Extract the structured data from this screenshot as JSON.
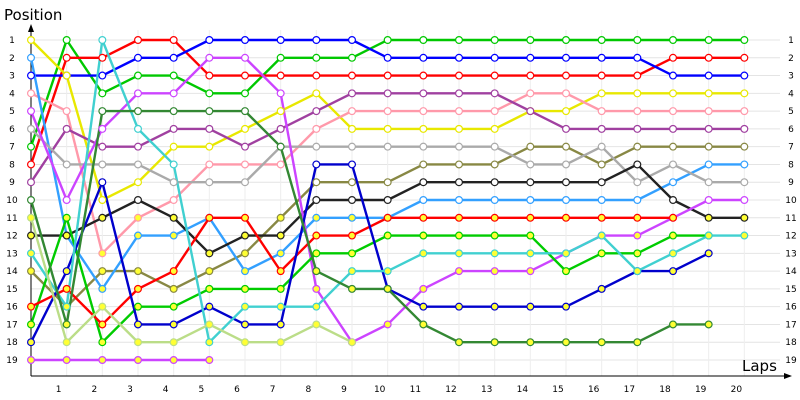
{
  "chart_data": {
    "type": "line",
    "ylabel": "Position",
    "xlabel": "Laps",
    "x_ticks": [
      "1",
      "2",
      "3",
      "4",
      "5",
      "6",
      "7",
      "8",
      "9",
      "10",
      "11",
      "12",
      "13",
      "14",
      "15",
      "16",
      "17",
      "18",
      "19",
      "20"
    ],
    "y_ticks": [
      "1",
      "2",
      "3",
      "4",
      "5",
      "6",
      "7",
      "8",
      "9",
      "10",
      "11",
      "12",
      "13",
      "14",
      "15",
      "16",
      "17",
      "18",
      "19"
    ],
    "xlim": [
      0,
      21
    ],
    "ylim": [
      1,
      19
    ],
    "y_inverted": true,
    "grid": true,
    "series": [
      {
        "color": "#00c800",
        "x": [
          0,
          1,
          2,
          3,
          4,
          5,
          6,
          7,
          8,
          9,
          10,
          11,
          12,
          13,
          14,
          15,
          16,
          17,
          18,
          19,
          20
        ],
        "y": [
          7,
          1,
          4,
          3,
          3,
          4,
          4,
          2,
          2,
          2,
          1,
          1,
          1,
          1,
          1,
          1,
          1,
          1,
          1,
          1,
          1
        ]
      },
      {
        "color": "#ff0000",
        "x": [
          0,
          1,
          2,
          3,
          4,
          5,
          6,
          7,
          8,
          9,
          10,
          11,
          12,
          13,
          14,
          15,
          16,
          17,
          18,
          19,
          20
        ],
        "y": [
          8,
          2,
          2,
          1,
          1,
          3,
          3,
          3,
          3,
          3,
          3,
          3,
          3,
          3,
          3,
          3,
          3,
          3,
          2,
          2,
          2
        ]
      },
      {
        "color": "#0000ff",
        "x": [
          0,
          1,
          2,
          3,
          4,
          5,
          6,
          7,
          8,
          9,
          10,
          11,
          12,
          13,
          14,
          15,
          16,
          17,
          18,
          19,
          20
        ],
        "y": [
          3,
          3,
          3,
          2,
          2,
          1,
          1,
          1,
          1,
          1,
          2,
          2,
          2,
          2,
          2,
          2,
          2,
          2,
          3,
          3,
          3
        ]
      },
      {
        "color": "#e8e800",
        "x": [
          0,
          1,
          2,
          3,
          4,
          5,
          6,
          7,
          8,
          9,
          10,
          11,
          12,
          13,
          14,
          15,
          16,
          17,
          18,
          19,
          20
        ],
        "y": [
          1,
          3,
          10,
          9,
          7,
          7,
          6,
          5,
          4,
          6,
          6,
          6,
          6,
          6,
          5,
          5,
          4,
          4,
          4,
          4,
          4
        ]
      },
      {
        "color": "#ff99aa",
        "x": [
          0,
          1,
          2,
          3,
          4,
          5,
          6,
          7,
          8,
          9,
          10,
          11,
          12,
          13,
          14,
          15,
          16,
          17,
          18,
          19,
          20
        ],
        "y": [
          4,
          5,
          13,
          11,
          10,
          8,
          8,
          8,
          6,
          5,
          5,
          5,
          5,
          5,
          4,
          4,
          5,
          5,
          5,
          5,
          5
        ]
      },
      {
        "color": "#a040a0",
        "x": [
          0,
          1,
          2,
          3,
          4,
          5,
          6,
          7,
          8,
          9,
          10,
          11,
          12,
          13,
          14,
          15,
          16,
          17,
          18,
          19,
          20
        ],
        "y": [
          9,
          6,
          7,
          7,
          6,
          6,
          7,
          6,
          5,
          4,
          4,
          4,
          4,
          4,
          5,
          6,
          6,
          6,
          6,
          6,
          6
        ]
      },
      {
        "color": "#888844",
        "x": [
          0,
          1,
          2,
          3,
          4,
          5,
          6,
          7,
          8,
          9,
          10,
          11,
          12,
          13,
          14,
          15,
          16,
          17,
          18,
          19,
          20
        ],
        "y": [
          14,
          16,
          14,
          14,
          15,
          14,
          13,
          11,
          9,
          9,
          9,
          8,
          8,
          8,
          7,
          7,
          8,
          7,
          7,
          7,
          7
        ]
      },
      {
        "color": "#33a0ff",
        "x": [
          0,
          1,
          2,
          3,
          4,
          5,
          6,
          7,
          8,
          9,
          10,
          11,
          12,
          13,
          14,
          15,
          16,
          17,
          18,
          19,
          20
        ],
        "y": [
          2,
          12,
          15,
          12,
          12,
          11,
          14,
          13,
          11,
          11,
          11,
          10,
          10,
          10,
          10,
          10,
          10,
          10,
          9,
          8,
          8
        ]
      },
      {
        "color": "#aaaaaa",
        "x": [
          0,
          1,
          2,
          3,
          4,
          5,
          6,
          7,
          8,
          9,
          10,
          11,
          12,
          13,
          14,
          15,
          16,
          17,
          18,
          19,
          20
        ],
        "y": [
          6,
          8,
          8,
          8,
          9,
          9,
          9,
          7,
          7,
          7,
          7,
          7,
          7,
          7,
          8,
          8,
          7,
          9,
          8,
          9,
          9
        ]
      },
      {
        "color": "#222222",
        "x": [
          0,
          1,
          2,
          3,
          4,
          5,
          6,
          7,
          8,
          9,
          10,
          11,
          12,
          13,
          14,
          15,
          16,
          17,
          18,
          19,
          20
        ],
        "y": [
          12,
          12,
          11,
          10,
          11,
          13,
          12,
          12,
          10,
          10,
          10,
          9,
          9,
          9,
          9,
          9,
          9,
          8,
          10,
          11,
          11
        ]
      },
      {
        "color": "#cc44ff",
        "x": [
          0,
          1,
          2,
          3,
          4,
          5,
          6,
          7,
          8,
          9,
          10,
          11,
          12,
          13,
          14,
          15,
          16,
          17,
          18,
          19,
          20
        ],
        "y": [
          5,
          10,
          6,
          4,
          4,
          2,
          2,
          4,
          15,
          18,
          17,
          15,
          14,
          14,
          14,
          13,
          12,
          12,
          11,
          10,
          10
        ]
      },
      {
        "color": "#00cc00",
        "x": [
          0,
          1,
          2,
          3,
          4,
          5,
          6,
          7,
          8,
          9,
          10,
          11,
          12,
          13,
          14,
          15,
          16,
          17,
          18,
          19
        ],
        "y": [
          17,
          11,
          18,
          16,
          16,
          15,
          15,
          15,
          13,
          13,
          12,
          12,
          12,
          12,
          12,
          14,
          13,
          13,
          12,
          12
        ]
      },
      {
        "color": "#ff0000",
        "x": [
          0,
          1,
          2,
          3,
          4,
          5,
          6,
          7,
          8,
          9,
          10,
          11,
          12,
          13,
          14,
          15,
          16,
          17,
          18
        ],
        "y": [
          16,
          15,
          17,
          15,
          14,
          11,
          11,
          14,
          12,
          12,
          11,
          11,
          11,
          11,
          11,
          11,
          11,
          11,
          11
        ]
      },
      {
        "color": "#0000cc",
        "x": [
          0,
          1,
          2,
          3,
          4,
          5,
          6,
          7,
          8,
          9,
          10,
          11,
          12,
          13,
          14,
          15,
          16,
          17,
          18,
          19
        ],
        "y": [
          18,
          14,
          9,
          17,
          17,
          16,
          17,
          17,
          8,
          8,
          15,
          16,
          16,
          16,
          16,
          16,
          15,
          14,
          14,
          13
        ]
      },
      {
        "color": "#40d0d0",
        "x": [
          0,
          1,
          2,
          3,
          4,
          5,
          6,
          7,
          8,
          9,
          10,
          11,
          12,
          13,
          14,
          15,
          16,
          17,
          18,
          19,
          20
        ],
        "y": [
          13,
          16,
          1,
          6,
          8,
          18,
          16,
          16,
          16,
          14,
          14,
          13,
          13,
          13,
          13,
          13,
          12,
          14,
          13,
          12,
          12
        ]
      },
      {
        "color": "#338833",
        "x": [
          0,
          1,
          2,
          3,
          4,
          5,
          6,
          7,
          8,
          9,
          10,
          11,
          12,
          13,
          14,
          15,
          16,
          17,
          18,
          19
        ],
        "y": [
          10,
          17,
          5,
          5,
          5,
          5,
          5,
          7,
          14,
          15,
          15,
          17,
          18,
          18,
          18,
          18,
          18,
          18,
          17,
          17
        ]
      },
      {
        "color": "#bbdd88",
        "x": [
          0,
          1,
          2,
          3,
          4,
          5,
          6,
          7,
          8,
          9
        ],
        "y": [
          11,
          18,
          16,
          18,
          18,
          17,
          18,
          18,
          17,
          18
        ]
      },
      {
        "color": "#cc44ff",
        "x": [
          0,
          1,
          2,
          3,
          4,
          5
        ],
        "y": [
          19,
          19,
          19,
          19,
          19,
          19
        ]
      }
    ]
  }
}
